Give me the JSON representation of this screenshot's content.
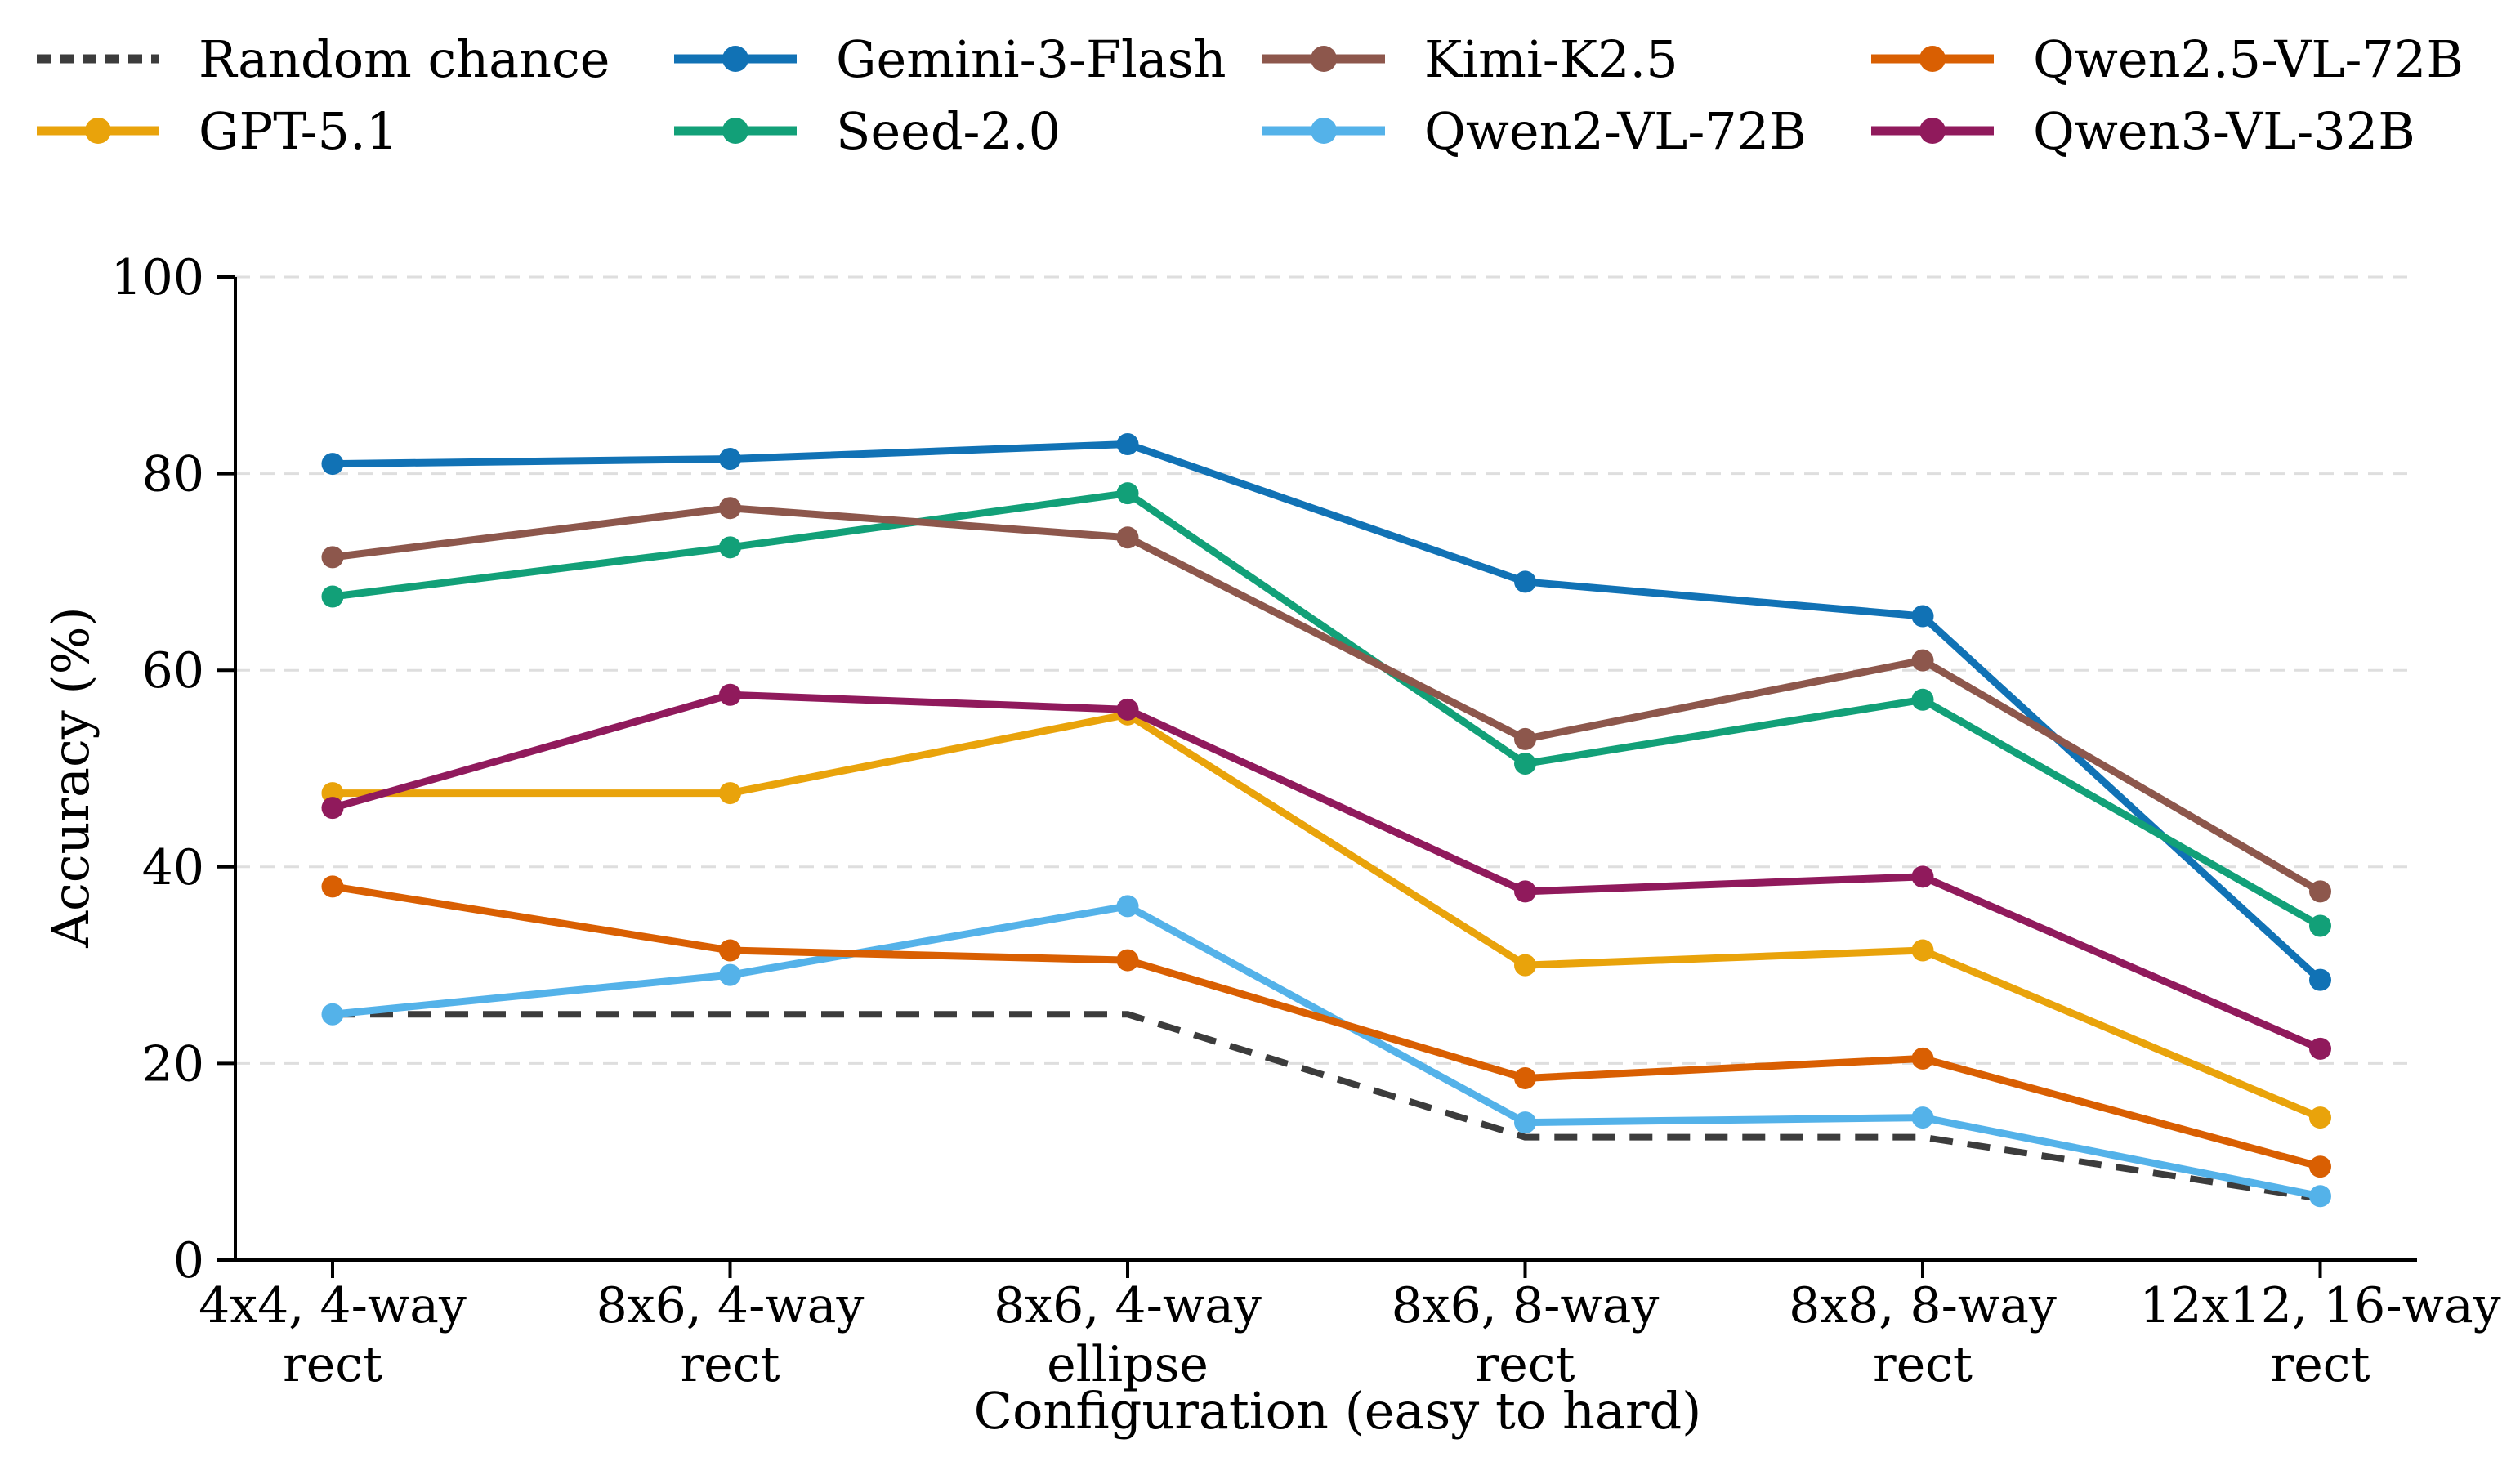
{
  "chart_data": {
    "type": "line",
    "title": "",
    "xlabel": "Configuration (easy to hard)",
    "ylabel": "Accuracy (%)",
    "ylim": [
      0,
      100
    ],
    "yticks": [
      0,
      20,
      40,
      60,
      80,
      100
    ],
    "grid": "horizontal-dashed",
    "legend_position": "top",
    "categories": [
      "4x4, 4-way\nrect",
      "8x6, 4-way\nrect",
      "8x6, 4-way\nellipse",
      "8x6, 8-way\nrect",
      "8x8, 8-way\nrect",
      "12x12, 16-way\nrect"
    ],
    "series": [
      {
        "name": "Random chance",
        "color": "#3c3c3c",
        "dashed": true,
        "markers": false,
        "values": [
          25,
          25,
          25,
          12.5,
          12.5,
          6.25
        ]
      },
      {
        "name": "GPT-5.1",
        "color": "#e9a30b",
        "dashed": false,
        "markers": true,
        "values": [
          47.5,
          47.5,
          55.5,
          30,
          31.5,
          14.5
        ]
      },
      {
        "name": "Gemini-3-Flash",
        "color": "#1172b5",
        "dashed": false,
        "markers": true,
        "values": [
          81,
          81.5,
          83,
          69,
          65.5,
          28.5
        ]
      },
      {
        "name": "Seed-2.0",
        "color": "#12a078",
        "dashed": false,
        "markers": true,
        "values": [
          67.5,
          72.5,
          78,
          50.5,
          57,
          34
        ]
      },
      {
        "name": "Kimi-K2.5",
        "color": "#8d574c",
        "dashed": false,
        "markers": true,
        "values": [
          71.5,
          76.5,
          73.5,
          53,
          61,
          37.5
        ]
      },
      {
        "name": "Qwen2-VL-72B",
        "color": "#54b2e9",
        "dashed": false,
        "markers": true,
        "values": [
          25,
          29,
          36,
          14,
          14.5,
          6.5
        ]
      },
      {
        "name": "Qwen2.5-VL-72B",
        "color": "#d95f02",
        "dashed": false,
        "markers": true,
        "values": [
          38,
          31.5,
          30.5,
          18.5,
          20.5,
          9.5
        ]
      },
      {
        "name": "Qwen3-VL-32B",
        "color": "#901a5c",
        "dashed": false,
        "markers": true,
        "values": [
          46,
          57.5,
          56,
          37.5,
          39,
          21.5
        ]
      }
    ],
    "legend_rows": [
      [
        "Random chance",
        "Gemini-3-Flash",
        "Kimi-K2.5",
        "Qwen2.5-VL-72B"
      ],
      [
        "GPT-5.1",
        "Seed-2.0",
        "Qwen2-VL-72B",
        "Qwen3-VL-32B"
      ]
    ]
  }
}
